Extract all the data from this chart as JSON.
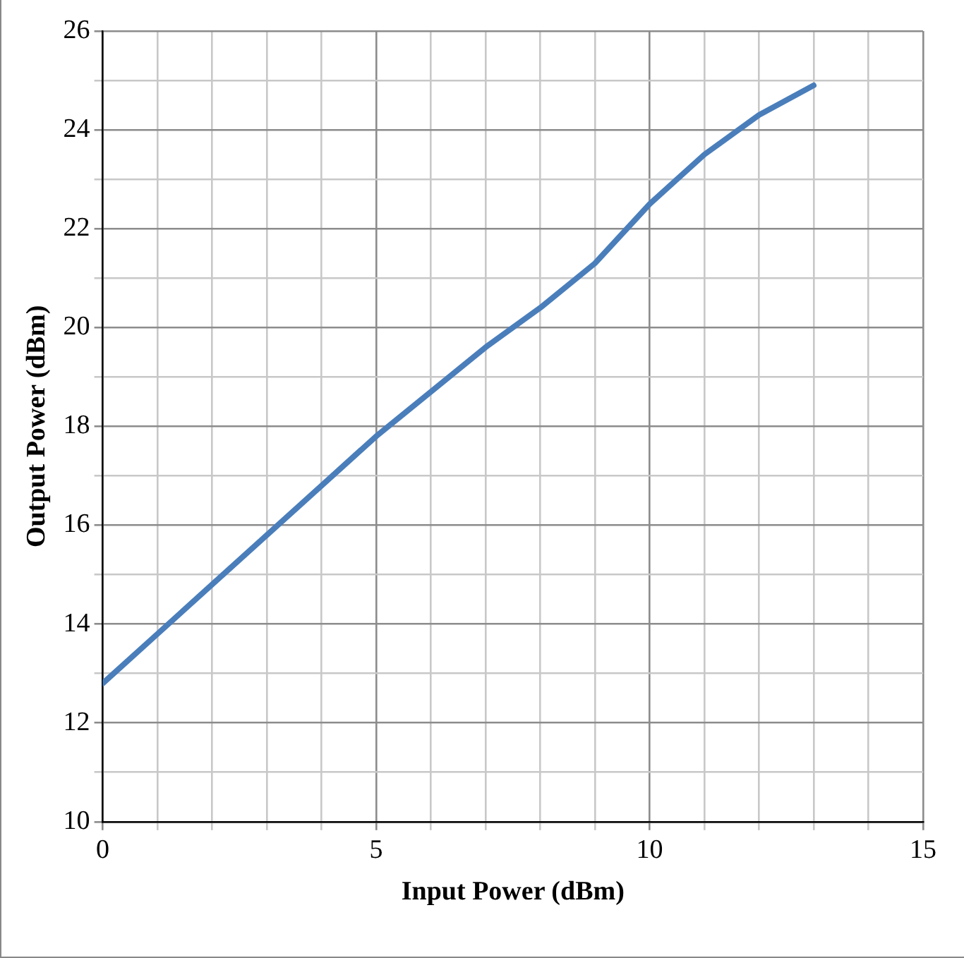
{
  "chart_data": {
    "type": "line",
    "xlabel": "Input Power (dBm)",
    "ylabel": "Output Power (dBm)",
    "x": [
      0,
      1,
      2,
      3,
      4,
      5,
      6,
      7,
      8,
      9,
      10,
      11,
      12,
      13
    ],
    "series": [
      {
        "color": "#4a7ebb",
        "values": [
          12.8,
          13.8,
          14.8,
          15.8,
          16.8,
          17.8,
          18.7,
          19.6,
          20.4,
          21.3,
          22.5,
          23.5,
          24.3,
          24.9
        ]
      }
    ],
    "xlim": [
      0,
      15
    ],
    "xticks": [
      0,
      {
        "value": 1,
        "label": null
      },
      {
        "value": 2,
        "label": null
      },
      {
        "value": 3,
        "label": null
      },
      {
        "value": 4,
        "label": null
      },
      5,
      {
        "value": 6,
        "label": null
      },
      {
        "value": 7,
        "label": null
      },
      {
        "value": 8,
        "label": null
      },
      {
        "value": 9,
        "label": null
      },
      10,
      {
        "value": 11,
        "label": null
      },
      {
        "value": 12,
        "label": null
      },
      {
        "value": 13,
        "label": null
      },
      {
        "value": 14,
        "label": null
      },
      15
    ],
    "ylim": [
      10,
      26
    ],
    "yticks": [
      10,
      {
        "value": 11,
        "label": null
      },
      12,
      {
        "value": 13,
        "label": null
      },
      14,
      {
        "value": 15,
        "label": null
      },
      16,
      {
        "value": 17,
        "label": null
      },
      18,
      {
        "value": 19,
        "label": null
      },
      20,
      {
        "value": 21,
        "label": null
      },
      22,
      {
        "value": 23,
        "label": null
      },
      24,
      {
        "value": 25,
        "label": null
      },
      26
    ],
    "grid": true,
    "legend": false,
    "marker": "none",
    "line_style": "solid"
  }
}
